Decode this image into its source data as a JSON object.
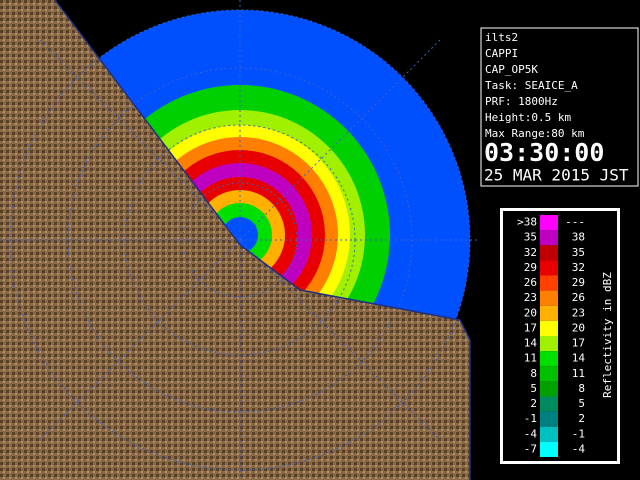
{
  "info": {
    "station": "ilts2",
    "product": "CAPPI",
    "config": "CAP_OP5K",
    "task": "Task: SEAICE_A",
    "prf": "PRF: 1800Hz",
    "height": "Height:0.5 km",
    "range": "Max Range:80 km",
    "time": "03:30:00",
    "date": "25 MAR 2015 JST"
  },
  "legend": {
    "title": "Reflectivity in dBZ",
    "rows": [
      {
        "low": ">38",
        "high": "---",
        "color": "#ff00ff"
      },
      {
        "low": "35",
        "high": "38",
        "color": "#c000c0"
      },
      {
        "low": "32",
        "high": "35",
        "color": "#c00000"
      },
      {
        "low": "29",
        "high": "32",
        "color": "#e80000"
      },
      {
        "low": "26",
        "high": "29",
        "color": "#ff4000"
      },
      {
        "low": "23",
        "high": "26",
        "color": "#ff8000"
      },
      {
        "low": "20",
        "high": "23",
        "color": "#ffb000"
      },
      {
        "low": "17",
        "high": "20",
        "color": "#ffff00"
      },
      {
        "low": "14",
        "high": "17",
        "color": "#a0f000"
      },
      {
        "low": "11",
        "high": "14",
        "color": "#00e000"
      },
      {
        "low": "8",
        "high": "11",
        "color": "#00c000"
      },
      {
        "low": "5",
        "high": "8",
        "color": "#00a000"
      },
      {
        "low": "2",
        "high": "5",
        "color": "#008a60"
      },
      {
        "low": "-1",
        "high": "2",
        "color": "#008080"
      },
      {
        "low": "-4",
        "high": "-1",
        "color": "#00c0c0"
      },
      {
        "low": "-7",
        "high": "-4",
        "color": "#00ffff"
      }
    ]
  }
}
